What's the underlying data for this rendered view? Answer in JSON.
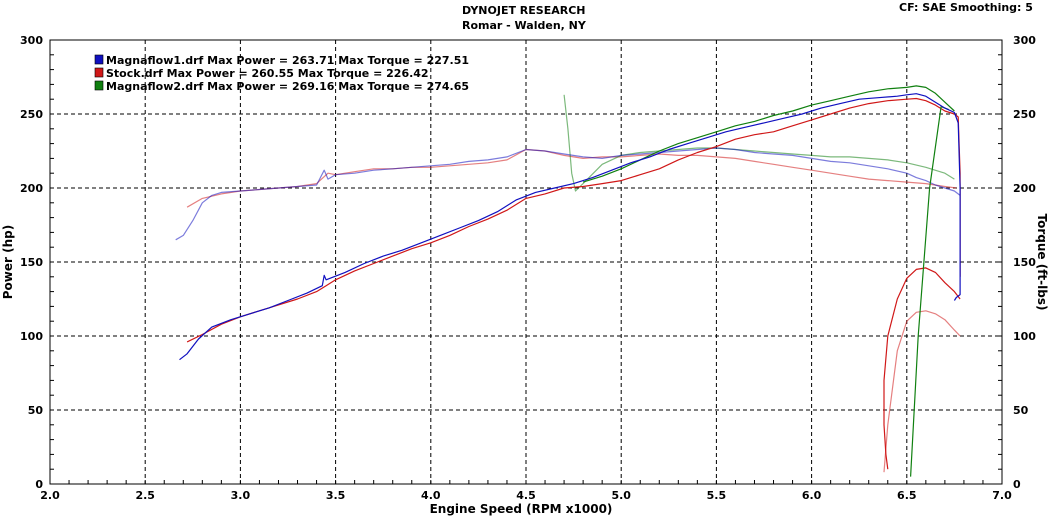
{
  "header": {
    "title": "DYNOJET RESEARCH",
    "subtitle": "Romar - Walden, NY",
    "settings": "CF: SAE  Smoothing: 5"
  },
  "chart_data": {
    "type": "line",
    "xlabel": "Engine Speed (RPM x1000)",
    "ylabel_left": "Power (hp)",
    "ylabel_right": "Torque (ft-lbs)",
    "xlim": [
      2.0,
      7.0
    ],
    "ylim_left": [
      0,
      300
    ],
    "ylim_right": [
      0,
      300
    ],
    "x_ticks": [
      "2.0",
      "2.5",
      "3.0",
      "3.5",
      "4.0",
      "4.5",
      "5.0",
      "5.5",
      "6.0",
      "6.5",
      "7.0"
    ],
    "y_ticks": [
      "0",
      "50",
      "100",
      "150",
      "200",
      "250",
      "300"
    ],
    "grid": true,
    "legend_position": "top-left",
    "series": [
      {
        "name": "Magnaflow1.drf",
        "legend": "Magnaflow1.drf Max Power = 263.71     Max Torque = 227.51",
        "color": "#1010c0",
        "power": [
          [
            2.68,
            84
          ],
          [
            2.72,
            88
          ],
          [
            2.78,
            98
          ],
          [
            2.85,
            106
          ],
          [
            2.95,
            111
          ],
          [
            3.05,
            115
          ],
          [
            3.15,
            119
          ],
          [
            3.25,
            124
          ],
          [
            3.35,
            129
          ],
          [
            3.43,
            134
          ],
          [
            3.44,
            141
          ],
          [
            3.45,
            138
          ],
          [
            3.55,
            143
          ],
          [
            3.65,
            149
          ],
          [
            3.75,
            154
          ],
          [
            3.85,
            158
          ],
          [
            3.95,
            163
          ],
          [
            4.05,
            168
          ],
          [
            4.15,
            173
          ],
          [
            4.25,
            178
          ],
          [
            4.35,
            184
          ],
          [
            4.45,
            192
          ],
          [
            4.55,
            197
          ],
          [
            4.65,
            200
          ],
          [
            4.75,
            203
          ],
          [
            4.85,
            207
          ],
          [
            4.95,
            212
          ],
          [
            5.05,
            217
          ],
          [
            5.15,
            221
          ],
          [
            5.25,
            226
          ],
          [
            5.35,
            230
          ],
          [
            5.45,
            234
          ],
          [
            5.55,
            238
          ],
          [
            5.65,
            241
          ],
          [
            5.75,
            244
          ],
          [
            5.85,
            247
          ],
          [
            5.95,
            250
          ],
          [
            6.05,
            254
          ],
          [
            6.15,
            257
          ],
          [
            6.25,
            260
          ],
          [
            6.35,
            261
          ],
          [
            6.45,
            262
          ],
          [
            6.5,
            263
          ],
          [
            6.55,
            263.7
          ],
          [
            6.6,
            262
          ],
          [
            6.65,
            258
          ],
          [
            6.7,
            254
          ],
          [
            6.75,
            251
          ],
          [
            6.77,
            244
          ],
          [
            6.78,
            200
          ],
          [
            6.78,
            128
          ],
          [
            6.76,
            126
          ],
          [
            6.75,
            124
          ]
        ],
        "torque": [
          [
            2.66,
            165
          ],
          [
            2.7,
            168
          ],
          [
            2.75,
            178
          ],
          [
            2.8,
            190
          ],
          [
            2.85,
            195
          ],
          [
            2.9,
            197
          ],
          [
            3.0,
            198
          ],
          [
            3.1,
            199
          ],
          [
            3.2,
            200
          ],
          [
            3.3,
            201
          ],
          [
            3.4,
            202
          ],
          [
            3.44,
            212
          ],
          [
            3.46,
            206
          ],
          [
            3.5,
            209
          ],
          [
            3.6,
            210
          ],
          [
            3.7,
            212
          ],
          [
            3.8,
            213
          ],
          [
            3.9,
            214
          ],
          [
            4.0,
            215
          ],
          [
            4.1,
            216
          ],
          [
            4.2,
            218
          ],
          [
            4.3,
            219
          ],
          [
            4.4,
            221
          ],
          [
            4.5,
            226
          ],
          [
            4.6,
            225
          ],
          [
            4.7,
            223
          ],
          [
            4.8,
            221
          ],
          [
            4.9,
            220
          ],
          [
            5.0,
            222
          ],
          [
            5.1,
            223
          ],
          [
            5.2,
            224
          ],
          [
            5.3,
            225
          ],
          [
            5.4,
            226
          ],
          [
            5.5,
            227
          ],
          [
            5.6,
            226
          ],
          [
            5.7,
            224
          ],
          [
            5.8,
            223
          ],
          [
            5.9,
            222
          ],
          [
            6.0,
            220
          ],
          [
            6.1,
            218
          ],
          [
            6.2,
            217
          ],
          [
            6.3,
            215
          ],
          [
            6.4,
            213
          ],
          [
            6.5,
            210
          ],
          [
            6.55,
            207
          ],
          [
            6.6,
            205
          ],
          [
            6.65,
            202
          ],
          [
            6.7,
            200
          ],
          [
            6.75,
            198
          ],
          [
            6.78,
            195
          ]
        ]
      },
      {
        "name": "Stock.drf",
        "legend": "Stock.drf Max Power = 260.55     Max Torque = 226.42",
        "color": "#d01818",
        "power": [
          [
            2.72,
            96
          ],
          [
            2.8,
            101
          ],
          [
            2.9,
            108
          ],
          [
            3.0,
            113
          ],
          [
            3.1,
            117
          ],
          [
            3.2,
            121
          ],
          [
            3.3,
            125
          ],
          [
            3.4,
            130
          ],
          [
            3.45,
            134
          ],
          [
            3.5,
            138
          ],
          [
            3.6,
            144
          ],
          [
            3.7,
            149
          ],
          [
            3.8,
            154
          ],
          [
            3.9,
            159
          ],
          [
            4.0,
            163
          ],
          [
            4.1,
            168
          ],
          [
            4.2,
            174
          ],
          [
            4.3,
            179
          ],
          [
            4.4,
            185
          ],
          [
            4.5,
            193
          ],
          [
            4.6,
            196
          ],
          [
            4.7,
            200
          ],
          [
            4.8,
            201
          ],
          [
            4.9,
            203
          ],
          [
            5.0,
            205
          ],
          [
            5.1,
            209
          ],
          [
            5.2,
            213
          ],
          [
            5.3,
            219
          ],
          [
            5.4,
            224
          ],
          [
            5.5,
            228
          ],
          [
            5.6,
            233
          ],
          [
            5.7,
            236
          ],
          [
            5.8,
            238
          ],
          [
            5.9,
            242
          ],
          [
            6.0,
            246
          ],
          [
            6.1,
            250
          ],
          [
            6.2,
            254
          ],
          [
            6.3,
            257
          ],
          [
            6.4,
            259
          ],
          [
            6.5,
            260
          ],
          [
            6.55,
            260.5
          ],
          [
            6.6,
            259
          ],
          [
            6.65,
            256
          ],
          [
            6.7,
            252
          ],
          [
            6.75,
            250
          ],
          [
            6.77,
            248
          ],
          [
            6.78,
            210
          ],
          [
            6.78,
            140
          ]
        ],
        "torque": [
          [
            2.72,
            187
          ],
          [
            2.8,
            193
          ],
          [
            2.9,
            196
          ],
          [
            3.0,
            198
          ],
          [
            3.1,
            199
          ],
          [
            3.2,
            200
          ],
          [
            3.3,
            201
          ],
          [
            3.4,
            203
          ],
          [
            3.46,
            210
          ],
          [
            3.5,
            209
          ],
          [
            3.6,
            211
          ],
          [
            3.7,
            213
          ],
          [
            3.8,
            213
          ],
          [
            3.9,
            214
          ],
          [
            4.0,
            214
          ],
          [
            4.1,
            215
          ],
          [
            4.2,
            216
          ],
          [
            4.3,
            217
          ],
          [
            4.4,
            219
          ],
          [
            4.5,
            226
          ],
          [
            4.6,
            225
          ],
          [
            4.7,
            222
          ],
          [
            4.8,
            220
          ],
          [
            4.9,
            221
          ],
          [
            5.0,
            221
          ],
          [
            5.1,
            222
          ],
          [
            5.2,
            223
          ],
          [
            5.3,
            222
          ],
          [
            5.4,
            222
          ],
          [
            5.5,
            221
          ],
          [
            5.6,
            220
          ],
          [
            5.7,
            218
          ],
          [
            5.8,
            216
          ],
          [
            5.9,
            214
          ],
          [
            6.0,
            212
          ],
          [
            6.1,
            210
          ],
          [
            6.2,
            208
          ],
          [
            6.3,
            206
          ],
          [
            6.4,
            205
          ],
          [
            6.5,
            204
          ],
          [
            6.6,
            203
          ],
          [
            6.7,
            201
          ],
          [
            6.76,
            200
          ]
        ],
        "low_power": [
          [
            6.4,
            10
          ],
          [
            6.39,
            20
          ],
          [
            6.38,
            40
          ],
          [
            6.38,
            70
          ],
          [
            6.4,
            100
          ],
          [
            6.45,
            125
          ],
          [
            6.5,
            139
          ],
          [
            6.55,
            145
          ],
          [
            6.6,
            146
          ],
          [
            6.65,
            143
          ],
          [
            6.7,
            136
          ],
          [
            6.75,
            130
          ],
          [
            6.78,
            125
          ]
        ],
        "low_torque": [
          [
            6.38,
            8
          ],
          [
            6.4,
            40
          ],
          [
            6.45,
            90
          ],
          [
            6.5,
            110
          ],
          [
            6.55,
            116
          ],
          [
            6.6,
            117
          ],
          [
            6.65,
            115
          ],
          [
            6.7,
            111
          ],
          [
            6.75,
            104
          ],
          [
            6.78,
            100
          ]
        ]
      },
      {
        "name": "Magnaflow2.drf",
        "legend": "Magnaflow2.drf Max Power = 269.16     Max Torque = 274.65",
        "color": "#108010",
        "power": [
          [
            4.8,
            204
          ],
          [
            4.9,
            208
          ],
          [
            5.0,
            213
          ],
          [
            5.1,
            219
          ],
          [
            5.2,
            225
          ],
          [
            5.3,
            230
          ],
          [
            5.4,
            234
          ],
          [
            5.5,
            238
          ],
          [
            5.6,
            242
          ],
          [
            5.7,
            245
          ],
          [
            5.8,
            249
          ],
          [
            5.9,
            252
          ],
          [
            6.0,
            256
          ],
          [
            6.1,
            259
          ],
          [
            6.2,
            262
          ],
          [
            6.3,
            265
          ],
          [
            6.4,
            267
          ],
          [
            6.5,
            268
          ],
          [
            6.55,
            269
          ],
          [
            6.6,
            268
          ],
          [
            6.65,
            264
          ],
          [
            6.7,
            258
          ],
          [
            6.75,
            252
          ]
        ],
        "torque": [
          [
            4.7,
            263
          ],
          [
            4.72,
            240
          ],
          [
            4.74,
            210
          ],
          [
            4.76,
            198
          ],
          [
            4.8,
            203
          ],
          [
            4.9,
            216
          ],
          [
            5.0,
            222
          ],
          [
            5.1,
            224
          ],
          [
            5.2,
            225
          ],
          [
            5.3,
            226
          ],
          [
            5.4,
            227
          ],
          [
            5.5,
            227
          ],
          [
            5.6,
            226
          ],
          [
            5.7,
            225
          ],
          [
            5.8,
            224
          ],
          [
            5.9,
            223
          ],
          [
            6.0,
            222
          ],
          [
            6.1,
            221
          ],
          [
            6.2,
            221
          ],
          [
            6.3,
            220
          ],
          [
            6.4,
            219
          ],
          [
            6.5,
            217
          ],
          [
            6.6,
            214
          ],
          [
            6.7,
            210
          ],
          [
            6.75,
            206
          ]
        ],
        "drop": [
          [
            6.52,
            5
          ],
          [
            6.56,
            100
          ],
          [
            6.62,
            200
          ],
          [
            6.68,
            255
          ],
          [
            6.72,
            253
          ]
        ]
      }
    ]
  }
}
